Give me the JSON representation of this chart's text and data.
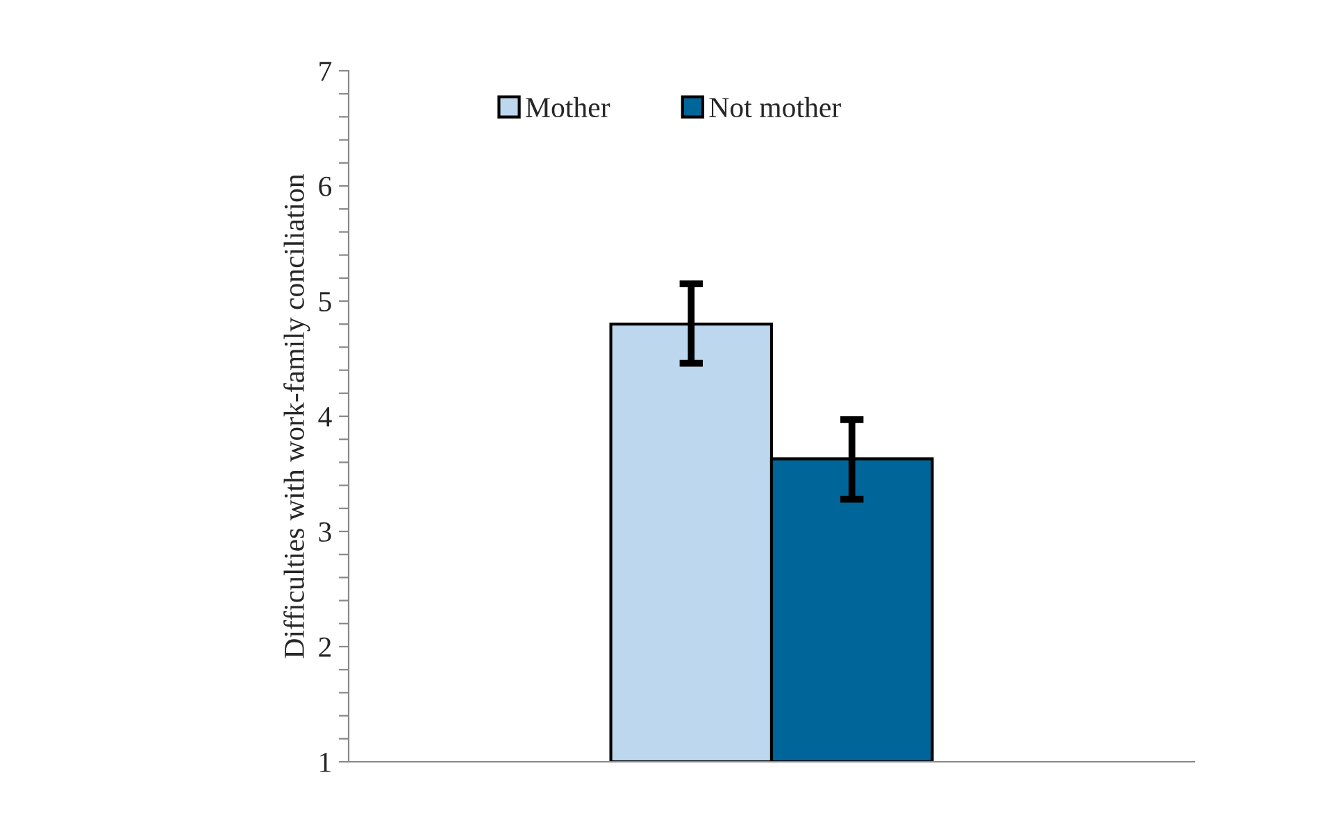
{
  "chart_data": {
    "type": "bar",
    "ylabel": "Difficulties with work-family conciliation",
    "categories": [
      null
    ],
    "series": [
      {
        "name": "Mother",
        "color": "#bdd7ee",
        "values": [
          4.8
        ],
        "errors": [
          [
            4.46,
            5.15
          ]
        ]
      },
      {
        "name": "Not mother",
        "color": "#006699",
        "values": [
          3.63
        ],
        "errors": [
          [
            3.28,
            3.97
          ]
        ]
      }
    ],
    "ylim": [
      1,
      7
    ],
    "yticks": [
      1,
      {
        "value": 1.2,
        "label": null
      },
      {
        "value": 1.4,
        "label": null
      },
      {
        "value": 1.6,
        "label": null
      },
      {
        "value": 1.8,
        "label": null
      },
      2,
      {
        "value": 2.2,
        "label": null
      },
      {
        "value": 2.4,
        "label": null
      },
      {
        "value": 2.6,
        "label": null
      },
      {
        "value": 2.8,
        "label": null
      },
      3,
      {
        "value": 3.2,
        "label": null
      },
      {
        "value": 3.4,
        "label": null
      },
      {
        "value": 3.6,
        "label": null
      },
      {
        "value": 3.8,
        "label": null
      },
      4,
      {
        "value": 4.2,
        "label": null
      },
      {
        "value": 4.4,
        "label": null
      },
      {
        "value": 4.6,
        "label": null
      },
      {
        "value": 4.8,
        "label": null
      },
      5,
      {
        "value": 5.2,
        "label": null
      },
      {
        "value": 5.4,
        "label": null
      },
      {
        "value": 5.6,
        "label": null
      },
      {
        "value": 5.8,
        "label": null
      },
      6,
      {
        "value": 6.2,
        "label": null
      },
      {
        "value": 6.4,
        "label": null
      },
      {
        "value": 6.6,
        "label": null
      },
      {
        "value": 6.8,
        "label": null
      },
      7
    ],
    "grid": false,
    "legend": "top",
    "tick_labels": "y"
  }
}
